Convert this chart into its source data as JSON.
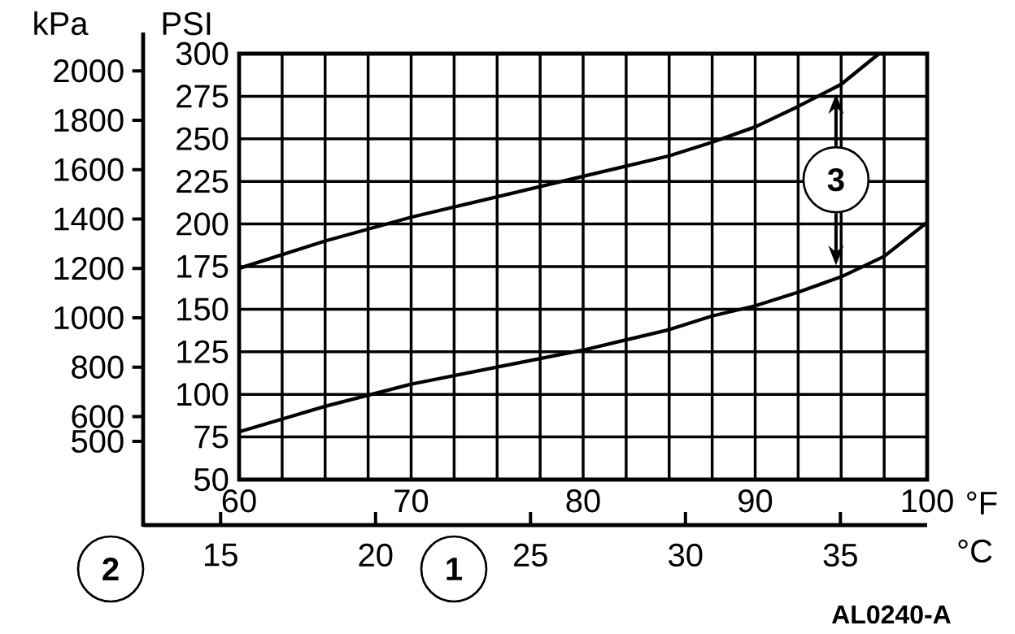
{
  "chart_data": {
    "type": "line",
    "xlabel": "°F",
    "x2label": "°C",
    "ylabel": "PSI",
    "y2label": "kPa",
    "xlim": [
      60,
      100
    ],
    "xticks": [
      60,
      {
        "value": 62.5,
        "label": null
      },
      {
        "value": 65,
        "label": null
      },
      {
        "value": 67.5,
        "label": null
      },
      70,
      {
        "value": 72.5,
        "label": null
      },
      {
        "value": 75,
        "label": null
      },
      {
        "value": 77.5,
        "label": null
      },
      80,
      {
        "value": 82.5,
        "label": null
      },
      {
        "value": 85,
        "label": null
      },
      {
        "value": 87.5,
        "label": null
      },
      90,
      {
        "value": 92.5,
        "label": null
      },
      {
        "value": 95,
        "label": null
      },
      {
        "value": 97.5,
        "label": null
      },
      100
    ],
    "ylim": [
      50,
      300
    ],
    "yticks": [
      50,
      75,
      100,
      125,
      150,
      175,
      200,
      225,
      250,
      275,
      300
    ],
    "x2lim": [
      12.5,
      37.8
    ],
    "x2ticks": [
      15,
      20,
      25,
      30,
      35
    ],
    "y2lim": [
      345,
      2070
    ],
    "y2ticks": [
      500,
      600,
      800,
      1000,
      1200,
      1400,
      1600,
      1800,
      2000
    ],
    "grid": true,
    "marker": "none",
    "line_style": "solid",
    "series": [
      {
        "color": "#000000",
        "x": [
          60,
          65,
          70,
          75,
          80,
          85,
          87.5,
          90,
          92.5,
          95,
          97.2
        ],
        "values": [
          174,
          190,
          204,
          216,
          228,
          240,
          248,
          257,
          269,
          282,
          300
        ]
      },
      {
        "color": "#000000",
        "x": [
          60,
          65,
          70,
          75,
          80,
          85,
          87.5,
          90,
          92.5,
          95,
          97.5,
          100
        ],
        "values": [
          78,
          93,
          106,
          116,
          126,
          138,
          146,
          152,
          160,
          169,
          181,
          201
        ]
      }
    ],
    "annotations": [
      {
        "text": "3",
        "x": 94.7,
        "y": 226
      },
      "1",
      "2",
      "AL0240-A"
    ]
  }
}
